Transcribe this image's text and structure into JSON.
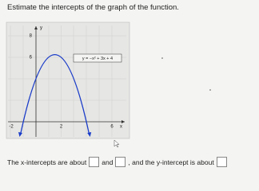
{
  "question": {
    "title": "Estimate the intercepts of the graph of the function."
  },
  "graph": {
    "y_axis_label": "y",
    "x_axis_label": "x",
    "y_tick_labels": [
      "8",
      "6"
    ],
    "x_tick_labels": [
      "-2",
      "2",
      "6"
    ],
    "equation": "y = −x² + 3x + 4"
  },
  "answer": {
    "part1": "The x-intercepts are about",
    "part2": "and",
    "part3": ", and the y-intercept is about"
  }
}
